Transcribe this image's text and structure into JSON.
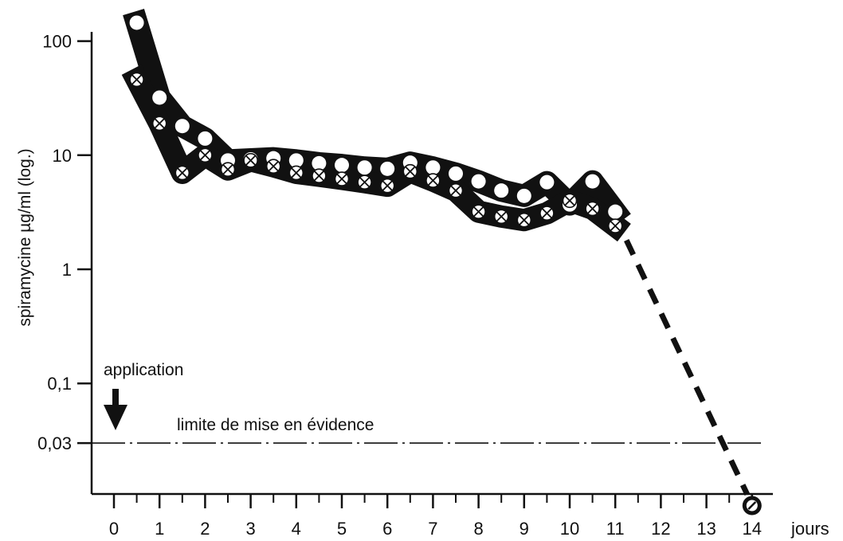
{
  "chart_data": {
    "type": "line",
    "title": "",
    "ylabel": "spiramycine µg/ml (log.)",
    "xlabel": "jours",
    "yscale": "log",
    "ylim": [
      0.0055,
      200
    ],
    "xlim": [
      -0.5,
      14.6
    ],
    "x_ticks": [
      0,
      1,
      2,
      3,
      4,
      5,
      6,
      7,
      8,
      9,
      10,
      11,
      12,
      13,
      14
    ],
    "x_tick_labels": [
      "0",
      "1",
      "2",
      "3",
      "4",
      "5",
      "6",
      "7",
      "8",
      "9",
      "10",
      "11",
      "12",
      "13",
      "14"
    ],
    "y_ticks": [
      100,
      10,
      1,
      0.1,
      0.03
    ],
    "y_tick_labels": [
      "100",
      "10",
      "1",
      "0,1",
      "0,03"
    ],
    "grid": false,
    "series": [
      {
        "marker": "open-circle",
        "x": [
          0.5,
          1,
          1.5,
          2,
          2.5,
          3,
          3.5,
          4,
          4.5,
          5,
          5.5,
          6,
          6.5,
          7,
          7.5,
          8,
          8.5,
          9,
          9.5,
          10,
          10.5,
          11
        ],
        "values": [
          145,
          32,
          18,
          14,
          9,
          9.2,
          9.4,
          9,
          8.5,
          8.2,
          7.8,
          7.6,
          8.6,
          7.8,
          6.9,
          5.9,
          4.9,
          4.4,
          5.8,
          3.7,
          5.9,
          3.2
        ]
      },
      {
        "marker": "crossed-circle",
        "x": [
          0.5,
          1,
          1.5,
          2,
          2.5,
          3,
          3.5,
          4,
          4.5,
          5,
          5.5,
          6,
          6.5,
          7,
          7.5,
          8,
          8.5,
          9,
          9.5,
          10,
          10.5,
          11
        ],
        "values": [
          46,
          19,
          7,
          10,
          7.5,
          9,
          8,
          7,
          6.6,
          6.2,
          5.8,
          5.4,
          7.2,
          6,
          4.9,
          3.2,
          2.9,
          2.7,
          3.1,
          4,
          3.4,
          2.4
        ]
      }
    ],
    "decline_projection": {
      "style": "dashed",
      "x": [
        11,
        14
      ],
      "values": [
        2.4,
        0.0085
      ]
    },
    "final_point": {
      "x": 14,
      "value": 0.0085,
      "marker": "crossed-circle"
    },
    "annotations": {
      "application_label": "application",
      "application_day": 0,
      "limit_label": "limite de mise en évidence",
      "limit_value": 0.03
    }
  }
}
